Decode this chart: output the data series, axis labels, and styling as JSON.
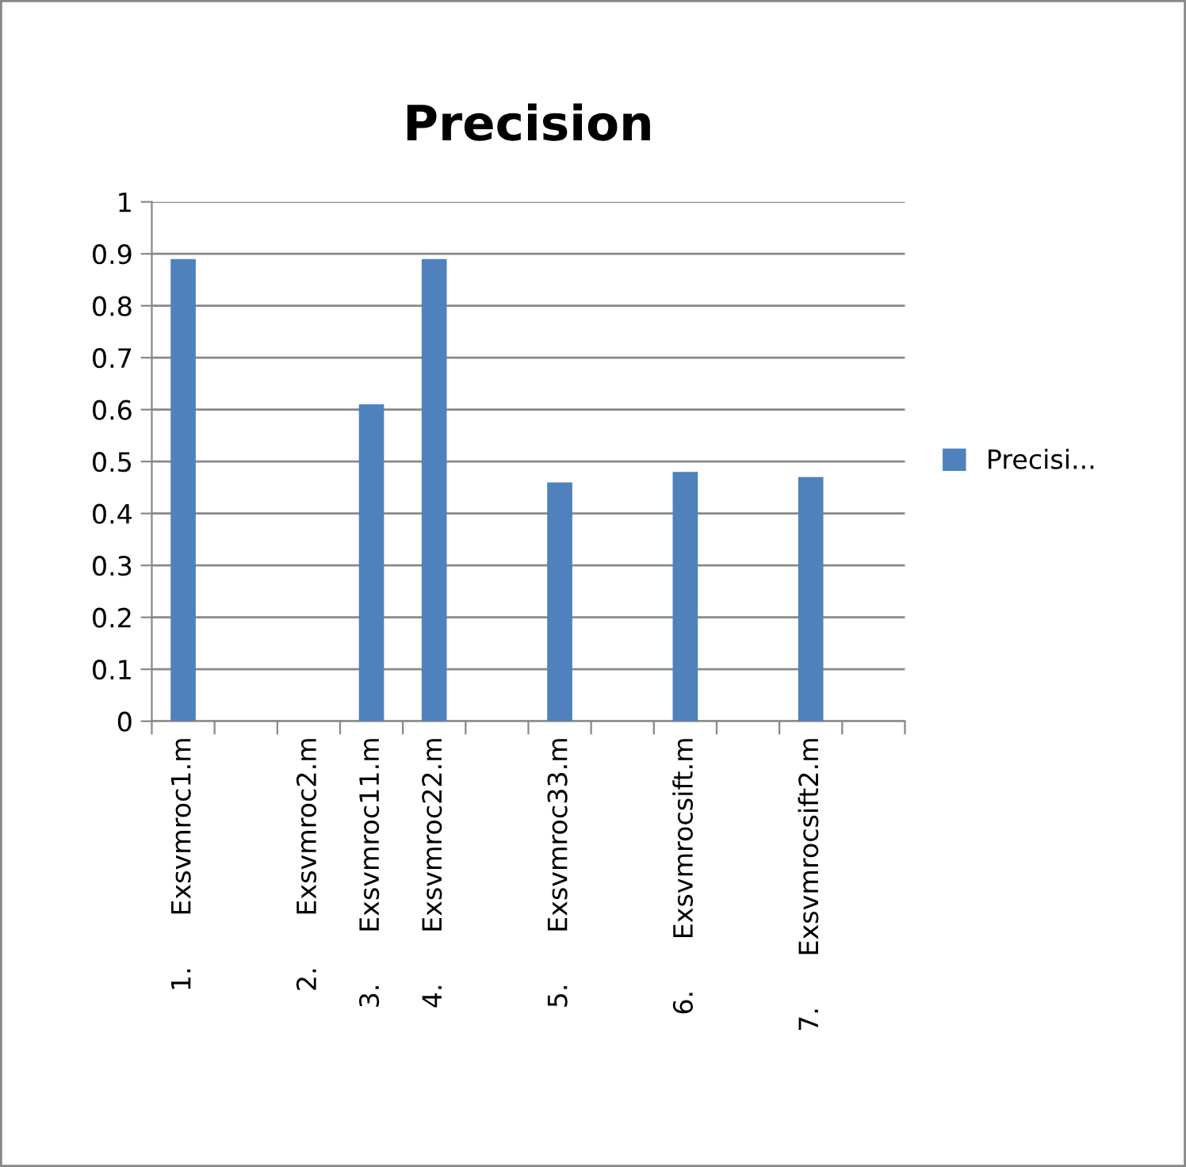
{
  "chart_data": {
    "type": "bar",
    "title": "Precision",
    "categories": [
      "1.      Exsvmroc1.m",
      null,
      "2.      Exsvmroc2.m",
      "3.      Exsvmroc11.m",
      "4.      Exsvmroc22.m",
      null,
      "5.      Exsvmroc33.m",
      null,
      "6.      Exsvmrocsift.m",
      null,
      "7.      Exsvmrocsift2.m",
      null
    ],
    "series": [
      {
        "name": "Precisi...",
        "color": "#4f81bd",
        "values": [
          0.89,
          null,
          null,
          0.61,
          0.89,
          null,
          0.46,
          null,
          0.48,
          null,
          0.47,
          null
        ]
      }
    ],
    "ylim": [
      0,
      1
    ],
    "yticks": [
      0,
      0.1,
      0.2,
      0.3,
      0.4,
      0.5,
      0.6,
      0.7,
      0.8,
      0.9,
      1
    ],
    "grid": "y",
    "legend": "right"
  }
}
